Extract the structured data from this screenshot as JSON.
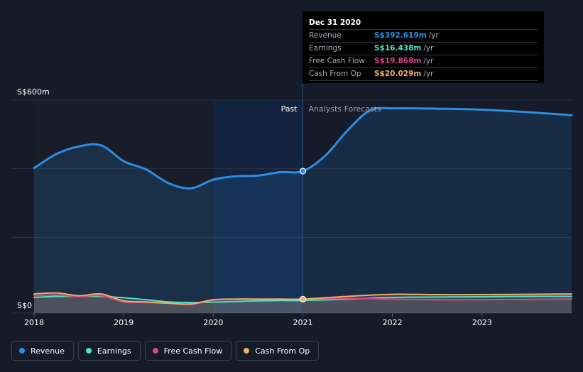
{
  "chart_data": {
    "type": "line",
    "title": "",
    "xlabel": "",
    "ylabel": "",
    "y_tick_labels": [
      "S$600m",
      "S$0"
    ],
    "ylim": [
      0,
      600
    ],
    "xlim": [
      2018,
      2024
    ],
    "x_ticks": [
      2018,
      2019,
      2020,
      2021,
      2022,
      2023
    ],
    "x_tick_labels": [
      "2018",
      "2019",
      "2020",
      "2021",
      "2022",
      "2023"
    ],
    "grid": true,
    "past_label": "Past",
    "forecast_label": "Analysts Forecasts",
    "divider_x": 2021,
    "series": [
      {
        "name": "Revenue",
        "color": "#2d8de3",
        "x": [
          2018.0,
          2018.25,
          2018.5,
          2018.75,
          2019.0,
          2019.25,
          2019.5,
          2019.75,
          2020.0,
          2020.25,
          2020.5,
          2020.75,
          2021.0,
          2021.25,
          2021.5,
          2021.75,
          2022.0,
          2022.5,
          2023.0,
          2023.5,
          2024.0
        ],
        "values": [
          402,
          443,
          465,
          468,
          422,
          398,
          358,
          343,
          368,
          378,
          380,
          390,
          393,
          438,
          512,
          570,
          576,
          575,
          572,
          565,
          556
        ]
      },
      {
        "name": "Earnings",
        "color": "#4fe3c3",
        "x": [
          2018.0,
          2018.25,
          2018.5,
          2018.75,
          2019.0,
          2019.25,
          2019.5,
          2019.75,
          2020.0,
          2020.25,
          2020.5,
          2020.75,
          2021.0,
          2021.5,
          2022.0,
          2022.5,
          2023.0,
          2023.5,
          2024.0
        ],
        "values": [
          25,
          28,
          28,
          28,
          24,
          18,
          12,
          10,
          11,
          13,
          15,
          16,
          16,
          20,
          25,
          26,
          27,
          28,
          28
        ]
      },
      {
        "name": "Free Cash Flow",
        "color": "#d6478b",
        "x": [
          2018.0,
          2018.25,
          2018.5,
          2018.75,
          2019.0,
          2019.25,
          2019.5,
          2019.75,
          2020.0,
          2020.25,
          2020.5,
          2020.75,
          2021.0,
          2021.5,
          2022.0,
          2022.5,
          2023.0,
          2023.5,
          2024.0
        ],
        "values": [
          30,
          32,
          28,
          30,
          12,
          10,
          8,
          4,
          17,
          20,
          20,
          20,
          20,
          22,
          20,
          18,
          18,
          19,
          20
        ]
      },
      {
        "name": "Cash From Op",
        "color": "#f1ae64",
        "x": [
          2018.0,
          2018.25,
          2018.5,
          2018.75,
          2019.0,
          2019.25,
          2019.5,
          2019.75,
          2020.0,
          2020.25,
          2020.5,
          2020.75,
          2021.0,
          2021.5,
          2022.0,
          2022.5,
          2023.0,
          2023.5,
          2024.0
        ],
        "values": [
          35,
          38,
          30,
          35,
          15,
          12,
          8,
          6,
          18,
          20,
          20,
          20,
          20,
          28,
          34,
          33,
          33,
          34,
          35
        ]
      }
    ]
  },
  "tooltip": {
    "date": "Dec 31 2020",
    "unit": "/yr",
    "rows": [
      {
        "name": "Revenue",
        "value": "S$392.619m",
        "color": "#2d8de3"
      },
      {
        "name": "Earnings",
        "value": "S$16.438m",
        "color": "#4fe3c3"
      },
      {
        "name": "Free Cash Flow",
        "value": "S$19.868m",
        "color": "#d6478b"
      },
      {
        "name": "Cash From Op",
        "value": "S$20.029m",
        "color": "#f1ae64"
      }
    ]
  },
  "legend": [
    {
      "label": "Revenue",
      "color": "#2d8de3"
    },
    {
      "label": "Earnings",
      "color": "#4fe3c3"
    },
    {
      "label": "Free Cash Flow",
      "color": "#d6478b"
    },
    {
      "label": "Cash From Op",
      "color": "#f1ae64"
    }
  ]
}
